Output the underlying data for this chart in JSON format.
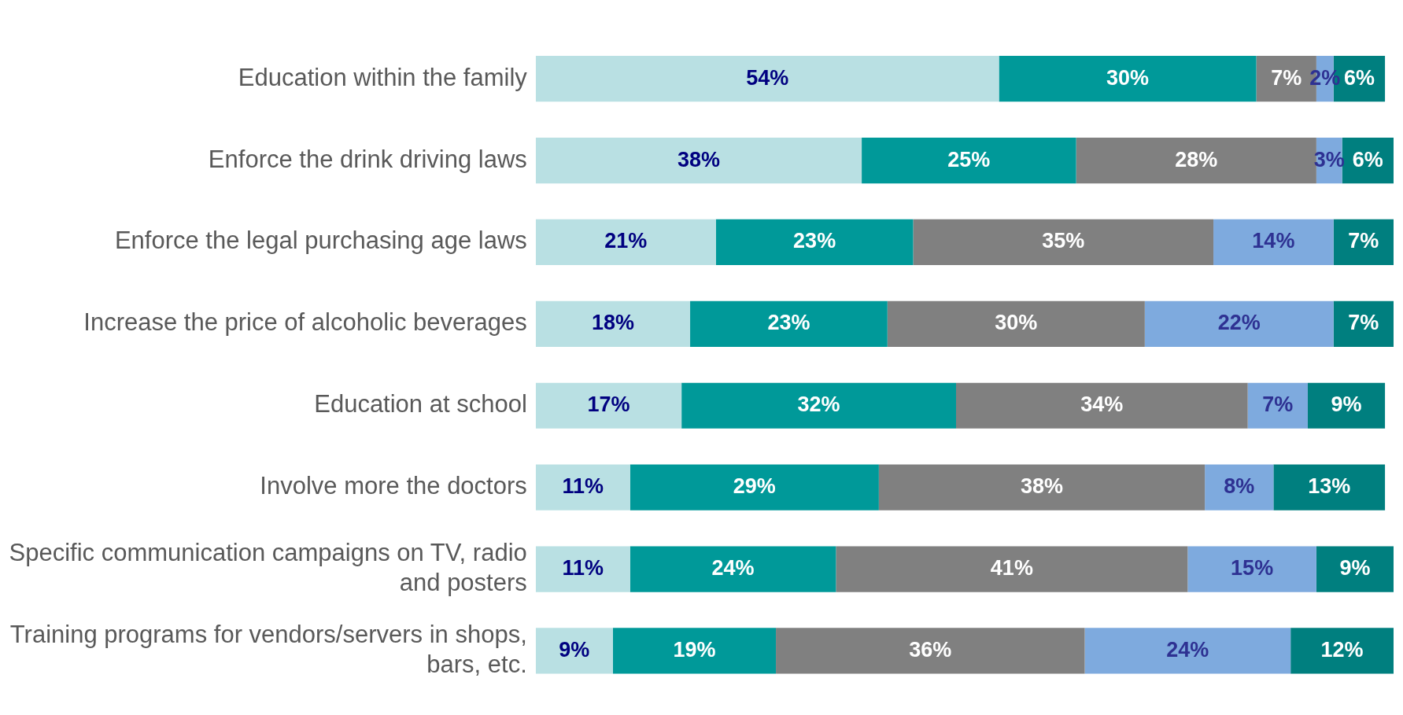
{
  "chart_data": {
    "type": "bar",
    "orientation": "horizontal",
    "stacked": true,
    "legend": false,
    "tick_labels": "y",
    "categories": [
      "Education within the family",
      "Enforce the drink driving laws",
      "Enforce the legal purchasing age laws",
      "Increase the price of alcoholic beverages",
      "Education at school",
      "Involve more the doctors",
      "Specific communication campaigns on TV, radio and posters",
      "Training programs for vendors/servers in shops, bars, etc."
    ],
    "series": [
      {
        "color": "#b9e0e3",
        "values": [
          54,
          38,
          21,
          18,
          17,
          11,
          11,
          9
        ],
        "value_labels": [
          "54%",
          "38%",
          "21%",
          "18%",
          "17%",
          "11%",
          "11%",
          "9%"
        ]
      },
      {
        "color": "#009999",
        "values": [
          30,
          25,
          23,
          23,
          32,
          29,
          24,
          19
        ],
        "value_labels": [
          "30%",
          "25%",
          "23%",
          "23%",
          "32%",
          "29%",
          "24%",
          "19%"
        ]
      },
      {
        "color": "#808080",
        "values": [
          7,
          28,
          35,
          30,
          34,
          38,
          41,
          36
        ],
        "value_labels": [
          "7%",
          "28%",
          "35%",
          "30%",
          "34%",
          "38%",
          "41%",
          "36%"
        ]
      },
      {
        "color": "#7eaade",
        "values": [
          2,
          3,
          14,
          22,
          7,
          8,
          15,
          24
        ],
        "value_labels": [
          "2%",
          "3%",
          "14%",
          "22%",
          "7%",
          "8%",
          "15%",
          "24%"
        ]
      },
      {
        "color": "#007f7f",
        "values": [
          6,
          6,
          7,
          7,
          9,
          13,
          9,
          12
        ],
        "value_labels": [
          "6%",
          "6%",
          "7%",
          "7%",
          "9%",
          "13%",
          "9%",
          "12%"
        ]
      }
    ]
  }
}
